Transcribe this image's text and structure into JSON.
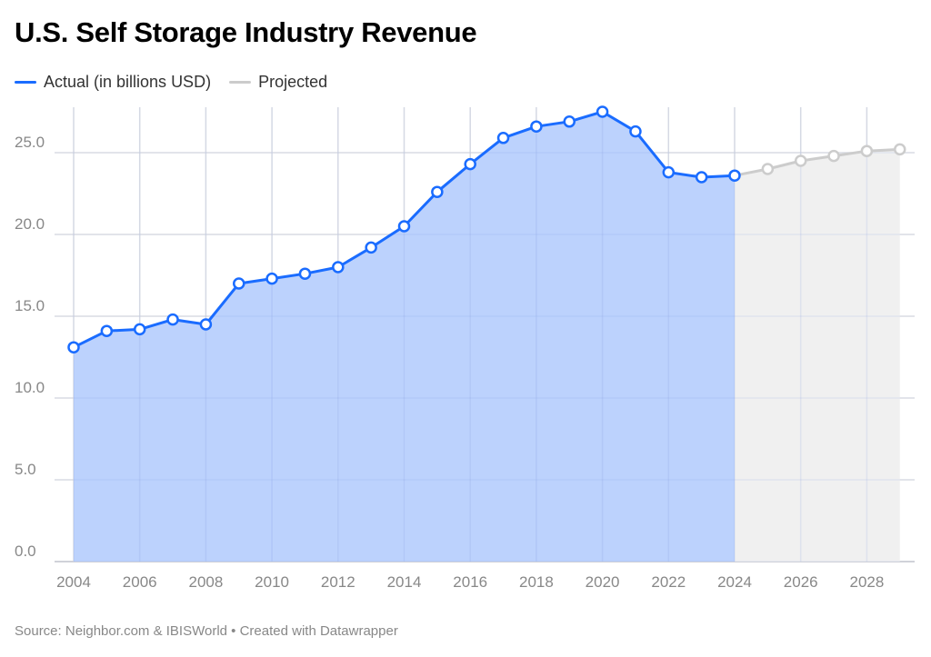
{
  "chart_data": {
    "type": "area",
    "title": "U.S. Self Storage Industry Revenue",
    "source": "Source: Neighbor.com & IBISWorld • Created with Datawrapper",
    "xlabel": "",
    "ylabel": "",
    "ylim": [
      0,
      27.5
    ],
    "xlim": [
      2004,
      2029
    ],
    "yticks": [
      "0.0",
      "5.0",
      "10.0",
      "15.0",
      "20.0",
      "25.0"
    ],
    "xticks": [
      "2004",
      "2006",
      "2008",
      "2010",
      "2012",
      "2014",
      "2016",
      "2018",
      "2020",
      "2022",
      "2024",
      "2026",
      "2028"
    ],
    "grid": true,
    "legend_position": "top-left",
    "series": [
      {
        "name": "Actual (in billions USD)",
        "color": "#1a6cff",
        "fill": "#b8d0fd",
        "x": [
          2004,
          2005,
          2006,
          2007,
          2008,
          2009,
          2010,
          2011,
          2012,
          2013,
          2014,
          2015,
          2016,
          2017,
          2018,
          2019,
          2020,
          2021,
          2022,
          2023,
          2024
        ],
        "values": [
          13.1,
          14.1,
          14.2,
          14.8,
          14.5,
          17.0,
          17.3,
          17.6,
          18.0,
          19.2,
          20.5,
          22.6,
          24.3,
          25.9,
          26.6,
          26.9,
          27.5,
          26.3,
          23.8,
          23.5,
          23.6
        ]
      },
      {
        "name": "Projected",
        "color": "#cccccc",
        "fill": "#f0f0f0",
        "x": [
          2024,
          2025,
          2026,
          2027,
          2028,
          2029
        ],
        "values": [
          23.6,
          24.0,
          24.5,
          24.8,
          25.1,
          25.2
        ]
      }
    ]
  }
}
